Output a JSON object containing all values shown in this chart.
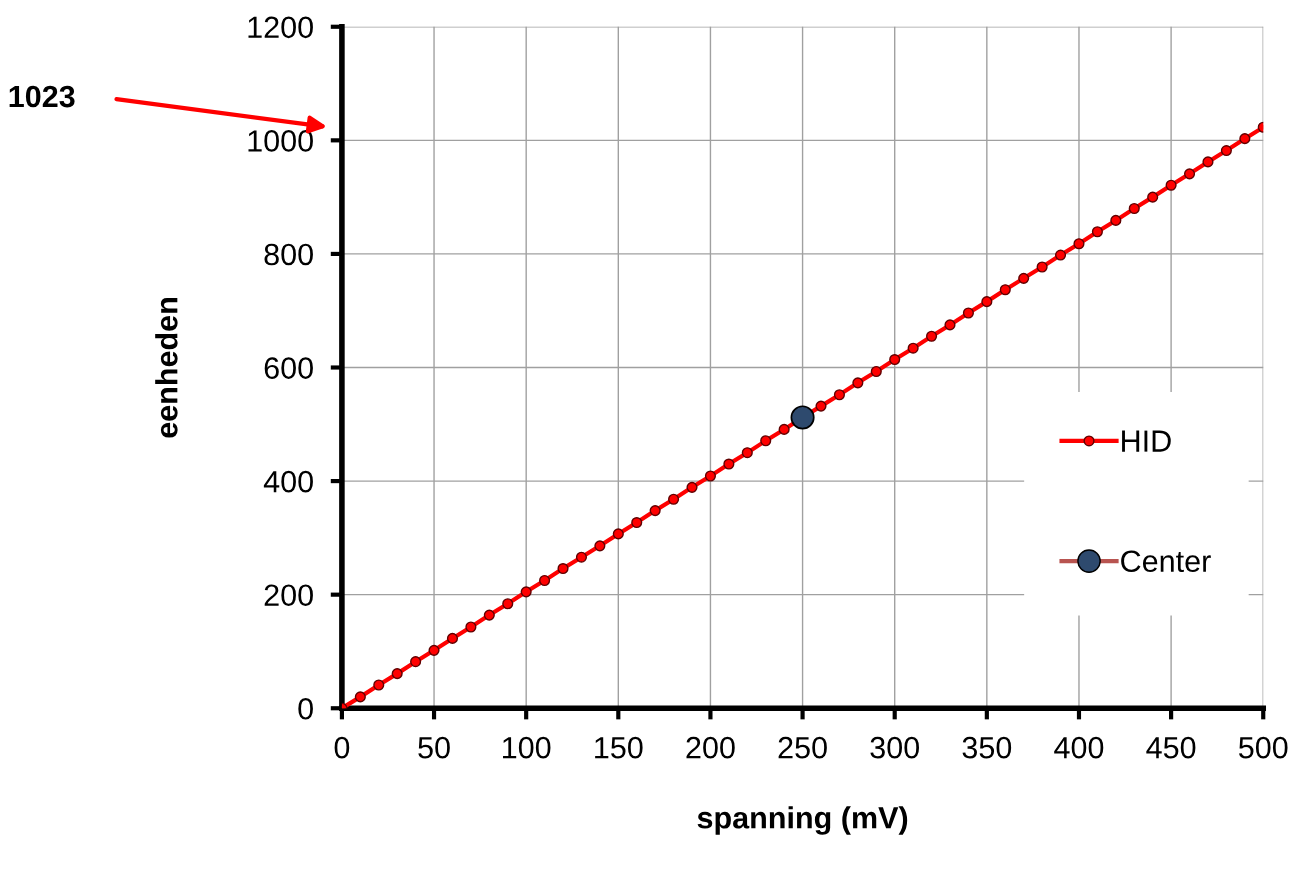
{
  "chart_data": {
    "type": "line",
    "xlabel": "spanning (mV)",
    "ylabel": "eenheden",
    "xlim": [
      0,
      500
    ],
    "xticks": [
      0,
      50,
      100,
      150,
      200,
      250,
      300,
      350,
      400,
      450,
      500
    ],
    "ylim": [
      0,
      1200
    ],
    "yticks": [
      0,
      200,
      400,
      600,
      800,
      1000,
      1200
    ],
    "grid": true,
    "legend": "right",
    "annotations": [
      "1023"
    ],
    "series": [
      {
        "name": "HID",
        "type": "line",
        "color": "#ff0000",
        "marker": "circle",
        "x": [
          0,
          10,
          20,
          30,
          40,
          50,
          60,
          70,
          80,
          90,
          100,
          110,
          120,
          130,
          140,
          150,
          160,
          170,
          180,
          190,
          200,
          210,
          220,
          230,
          240,
          250,
          260,
          270,
          280,
          290,
          300,
          310,
          320,
          330,
          340,
          350,
          360,
          370,
          380,
          390,
          400,
          410,
          420,
          430,
          440,
          450,
          460,
          470,
          480,
          490,
          500
        ],
        "values": [
          0,
          20,
          41,
          61,
          82,
          102,
          123,
          143,
          164,
          184,
          205,
          225,
          246,
          266,
          286,
          307,
          327,
          348,
          368,
          389,
          409,
          430,
          450,
          471,
          491,
          512,
          532,
          552,
          573,
          593,
          614,
          634,
          655,
          675,
          696,
          716,
          737,
          757,
          777,
          798,
          818,
          839,
          859,
          880,
          900,
          921,
          941,
          962,
          982,
          1003,
          1023
        ]
      },
      {
        "name": "Center",
        "type": "scatter",
        "color": "#2e4a6e",
        "marker": "circle",
        "x": [
          250
        ],
        "values": [
          512
        ]
      }
    ]
  }
}
